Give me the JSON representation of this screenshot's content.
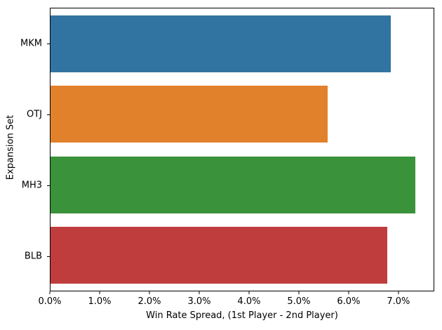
{
  "chart_data": {
    "type": "bar",
    "orientation": "horizontal",
    "title": "",
    "xlabel": "Win Rate Spread, (1st Player - 2nd Player)",
    "ylabel": "Expansion Set",
    "categories": [
      "MKM",
      "OTJ",
      "MH3",
      "BLB"
    ],
    "values": [
      0.0686,
      0.0559,
      0.0735,
      0.0679
    ],
    "bar_colors": [
      "#3274a1",
      "#e1812c",
      "#3a923a",
      "#c03d3e"
    ],
    "xlim": [
      0,
      0.0772
    ],
    "x_ticks": [
      0,
      0.01,
      0.02,
      0.03,
      0.04,
      0.05,
      0.06,
      0.07
    ],
    "x_tick_labels": [
      "0.0%",
      "1.0%",
      "2.0%",
      "3.0%",
      "4.0%",
      "5.0%",
      "6.0%",
      "7.0%"
    ],
    "grid": false,
    "legend_position": "none"
  },
  "axis_style": {
    "spine_color": "#000000",
    "text_color": "#000000",
    "background": "#ffffff"
  }
}
